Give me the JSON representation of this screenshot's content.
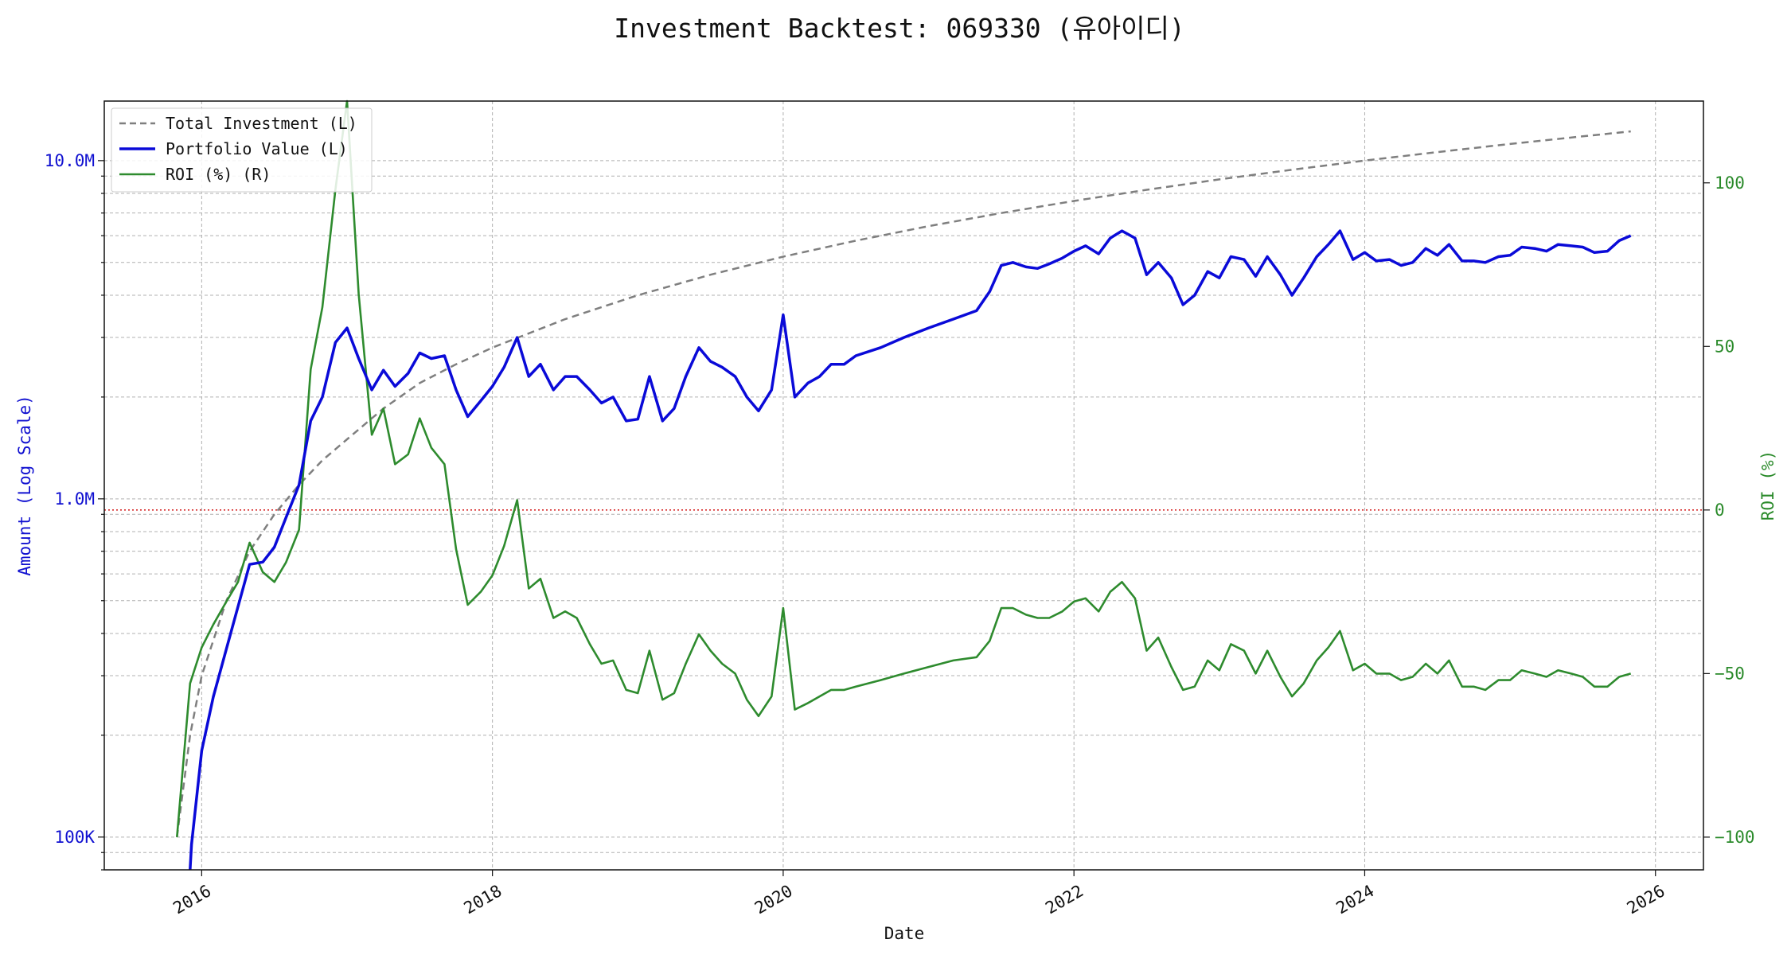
{
  "chart_data": {
    "type": "line",
    "title": "Investment Backtest: 069330 (유아이디)",
    "xlabel": "Date",
    "ylabel_left": "Amount (Log Scale)",
    "ylabel_right": "ROI (%)",
    "left_axis": {
      "scale": "log",
      "ylim": [
        80000,
        15000000
      ],
      "ticks": [
        {
          "value": 100000,
          "label": "100K"
        },
        {
          "value": 1000000,
          "label": "1.0M"
        },
        {
          "value": 10000000,
          "label": "10.0M"
        }
      ]
    },
    "right_axis": {
      "scale": "linear",
      "ylim": [
        -110,
        125
      ],
      "ticks": [
        {
          "value": -100,
          "label": "−100"
        },
        {
          "value": -50,
          "label": "−50"
        },
        {
          "value": 0,
          "label": "0"
        },
        {
          "value": 50,
          "label": "50"
        },
        {
          "value": 100,
          "label": "100"
        }
      ]
    },
    "x_axis": {
      "xlim": [
        2015.33,
        2026.33
      ],
      "ticks": [
        2016,
        2018,
        2020,
        2022,
        2024,
        2026
      ]
    },
    "grid": true,
    "legend_position": "upper-left",
    "reference_line": {
      "axis": "right",
      "value": 0,
      "color": "#d62728"
    },
    "colors": {
      "total": "#7f7f7f",
      "portfolio": "#0a0ad8",
      "roi": "#2e8b2e",
      "zero": "#d62728"
    },
    "legend": [
      {
        "key": "total",
        "label": "Total Investment (L)"
      },
      {
        "key": "portfolio",
        "label": "Portfolio Value (L)"
      },
      {
        "key": "roi",
        "label": "ROI (%) (R)"
      }
    ],
    "series": {
      "total_investment": {
        "name": "Total Investment (L)",
        "x": [
          2015.83,
          2015.92,
          2016.0,
          2016.17,
          2016.33,
          2016.5,
          2016.67,
          2016.83,
          2017.0,
          2017.25,
          2017.5,
          2017.75,
          2018.0,
          2018.5,
          2019.0,
          2019.5,
          2020.0,
          2020.5,
          2021.0,
          2021.5,
          2022.0,
          2022.5,
          2023.0,
          2023.5,
          2024.0,
          2024.5,
          2025.0,
          2025.5,
          2025.83
        ],
        "y": [
          100000,
          200000,
          300000,
          500000,
          700000,
          900000,
          1100000,
          1300000,
          1500000,
          1850000,
          2200000,
          2500000,
          2800000,
          3400000,
          4000000,
          4600000,
          5200000,
          5800000,
          6400000,
          7000000,
          7600000,
          8200000,
          8800000,
          9400000,
          10000000,
          10600000,
          11200000,
          11800000,
          12200000
        ]
      },
      "portfolio_value": {
        "name": "Portfolio Value (L)",
        "x": [
          2015.92,
          2015.93,
          2016.0,
          2016.08,
          2016.17,
          2016.25,
          2016.33,
          2016.42,
          2016.5,
          2016.58,
          2016.67,
          2016.75,
          2016.83,
          2016.92,
          2017.0,
          2017.08,
          2017.17,
          2017.25,
          2017.33,
          2017.42,
          2017.5,
          2017.58,
          2017.67,
          2017.75,
          2017.83,
          2017.92,
          2018.0,
          2018.08,
          2018.17,
          2018.25,
          2018.33,
          2018.42,
          2018.5,
          2018.58,
          2018.67,
          2018.75,
          2018.83,
          2018.92,
          2019.0,
          2019.08,
          2019.17,
          2019.25,
          2019.33,
          2019.42,
          2019.5,
          2019.58,
          2019.67,
          2019.75,
          2019.83,
          2019.92,
          2020.0,
          2020.08,
          2020.17,
          2020.25,
          2020.33,
          2020.42,
          2020.5,
          2020.67,
          2020.83,
          2021.0,
          2021.17,
          2021.33,
          2021.42,
          2021.5,
          2021.58,
          2021.67,
          2021.75,
          2021.83,
          2021.92,
          2022.0,
          2022.08,
          2022.17,
          2022.25,
          2022.33,
          2022.42,
          2022.5,
          2022.58,
          2022.67,
          2022.75,
          2022.83,
          2022.92,
          2023.0,
          2023.08,
          2023.17,
          2023.25,
          2023.33,
          2023.42,
          2023.5,
          2023.58,
          2023.67,
          2023.75,
          2023.83,
          2023.92,
          2024.0,
          2024.08,
          2024.17,
          2024.25,
          2024.33,
          2024.42,
          2024.5,
          2024.58,
          2024.67,
          2024.75,
          2024.83,
          2024.92,
          2025.0,
          2025.08,
          2025.17,
          2025.25,
          2025.33,
          2025.42,
          2025.5,
          2025.58,
          2025.67,
          2025.75,
          2025.83
        ],
        "y": [
          78000,
          95000,
          180000,
          260000,
          360000,
          480000,
          640000,
          650000,
          720000,
          880000,
          1100000,
          1700000,
          2000000,
          2900000,
          3200000,
          2600000,
          2100000,
          2400000,
          2150000,
          2350000,
          2700000,
          2600000,
          2650000,
          2100000,
          1750000,
          1950000,
          2150000,
          2450000,
          3000000,
          2300000,
          2500000,
          2100000,
          2300000,
          2300000,
          2100000,
          1920000,
          2000000,
          1700000,
          1720000,
          2300000,
          1700000,
          1850000,
          2300000,
          2800000,
          2550000,
          2450000,
          2300000,
          2000000,
          1820000,
          2100000,
          3500000,
          2000000,
          2200000,
          2300000,
          2500000,
          2500000,
          2650000,
          2800000,
          3000000,
          3200000,
          3400000,
          3600000,
          4100000,
          4900000,
          5000000,
          4850000,
          4800000,
          4950000,
          5150000,
          5400000,
          5600000,
          5300000,
          5900000,
          6200000,
          5900000,
          4600000,
          5000000,
          4500000,
          3750000,
          4000000,
          4700000,
          4500000,
          5200000,
          5100000,
          4550000,
          5200000,
          4600000,
          4000000,
          4500000,
          5200000,
          5650000,
          6200000,
          5100000,
          5350000,
          5050000,
          5100000,
          4900000,
          5000000,
          5500000,
          5250000,
          5650000,
          5050000,
          5050000,
          5000000,
          5200000,
          5250000,
          5550000,
          5500000,
          5400000,
          5650000,
          5600000,
          5550000,
          5350000,
          5400000,
          5800000,
          6000000
        ]
      },
      "roi": {
        "name": "ROI (%) (R)",
        "x": [
          2015.83,
          2015.92,
          2016.0,
          2016.08,
          2016.17,
          2016.25,
          2016.33,
          2016.42,
          2016.5,
          2016.58,
          2016.67,
          2016.75,
          2016.83,
          2016.92,
          2017.0,
          2017.08,
          2017.17,
          2017.25,
          2017.33,
          2017.42,
          2017.5,
          2017.58,
          2017.67,
          2017.75,
          2017.83,
          2017.92,
          2018.0,
          2018.08,
          2018.17,
          2018.25,
          2018.33,
          2018.42,
          2018.5,
          2018.58,
          2018.67,
          2018.75,
          2018.83,
          2018.92,
          2019.0,
          2019.08,
          2019.17,
          2019.25,
          2019.33,
          2019.42,
          2019.5,
          2019.58,
          2019.67,
          2019.75,
          2019.83,
          2019.92,
          2020.0,
          2020.08,
          2020.17,
          2020.25,
          2020.33,
          2020.42,
          2020.5,
          2020.67,
          2020.83,
          2021.0,
          2021.17,
          2021.33,
          2021.42,
          2021.5,
          2021.58,
          2021.67,
          2021.75,
          2021.83,
          2021.92,
          2022.0,
          2022.08,
          2022.17,
          2022.25,
          2022.33,
          2022.42,
          2022.5,
          2022.58,
          2022.67,
          2022.75,
          2022.83,
          2022.92,
          2023.0,
          2023.08,
          2023.17,
          2023.25,
          2023.33,
          2023.42,
          2023.5,
          2023.58,
          2023.67,
          2023.75,
          2023.83,
          2023.92,
          2024.0,
          2024.08,
          2024.17,
          2024.25,
          2024.33,
          2024.42,
          2024.5,
          2024.58,
          2024.67,
          2024.75,
          2024.83,
          2024.92,
          2025.0,
          2025.08,
          2025.17,
          2025.25,
          2025.33,
          2025.42,
          2025.5,
          2025.58,
          2025.67,
          2025.75,
          2025.83
        ],
        "y": [
          -100,
          -53,
          -42,
          -35,
          -28,
          -22,
          -10,
          -19,
          -22,
          -16,
          -6,
          43,
          62,
          98,
          125,
          66,
          23,
          31,
          14,
          17,
          28,
          19,
          14,
          -12,
          -29,
          -25,
          -20,
          -11,
          3,
          -24,
          -21,
          -33,
          -31,
          -33,
          -41,
          -47,
          -46,
          -55,
          -56,
          -43,
          -58,
          -56,
          -47,
          -38,
          -43,
          -47,
          -50,
          -58,
          -63,
          -57,
          -30,
          -61,
          -59,
          -57,
          -55,
          -55,
          -54,
          -52,
          -50,
          -48,
          -46,
          -45,
          -40,
          -30,
          -30,
          -32,
          -33,
          -33,
          -31,
          -28,
          -27,
          -31,
          -25,
          -22,
          -27,
          -43,
          -39,
          -48,
          -55,
          -54,
          -46,
          -49,
          -41,
          -43,
          -50,
          -43,
          -51,
          -57,
          -53,
          -46,
          -42,
          -37,
          -49,
          -47,
          -50,
          -50,
          -52,
          -51,
          -47,
          -50,
          -46,
          -54,
          -54,
          -55,
          -52,
          -52,
          -49,
          -50,
          -51,
          -49,
          -50,
          -51,
          -54,
          -54,
          -51,
          -50
        ]
      }
    }
  }
}
